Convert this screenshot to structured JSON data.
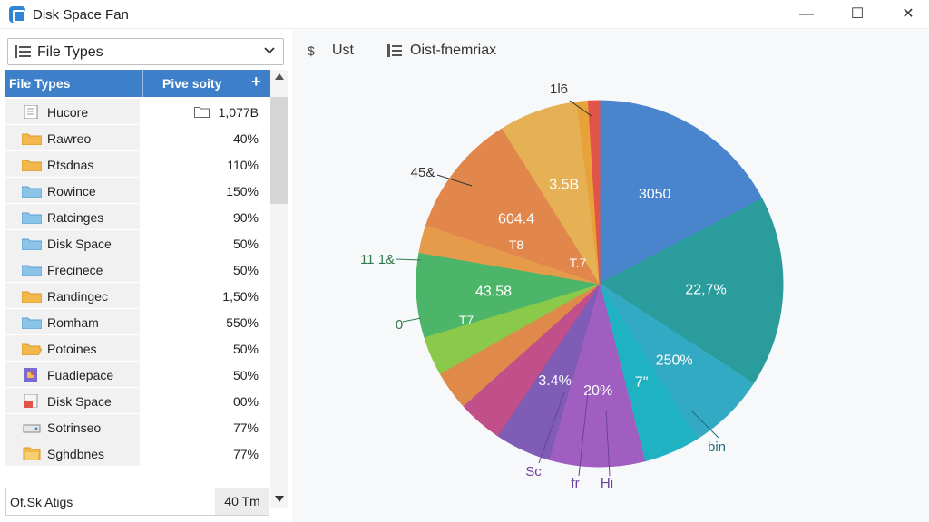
{
  "window": {
    "title": "Disk Space Fan",
    "minimize_glyph": "—",
    "maximize_glyph": "☐",
    "close_glyph": "✕"
  },
  "sidebar": {
    "dropdown_value": "File Types",
    "table": {
      "col_name": "File Types",
      "col_value": "Pive soity",
      "add_glyph": "+",
      "rows": [
        {
          "name": "Hucore",
          "value": "1,077B",
          "icon": "document-icon",
          "folder_icon": "folder-outline-icon"
        },
        {
          "name": "Rawreo",
          "value": "40%",
          "icon": "folder-yellow-icon"
        },
        {
          "name": "Rtsdnas",
          "value": "110%",
          "icon": "folder-yellow-icon"
        },
        {
          "name": "Rowince",
          "value": "150%",
          "icon": "folder-blue-icon"
        },
        {
          "name": "Ratcinges",
          "value": "90%",
          "icon": "folder-blue-icon"
        },
        {
          "name": "Disk Space",
          "value": "50%",
          "icon": "folder-blue-icon"
        },
        {
          "name": "Frecinece",
          "value": "50%",
          "icon": "folder-blue-icon"
        },
        {
          "name": "Randingec",
          "value": "1,50%",
          "icon": "folder-yellow-icon"
        },
        {
          "name": "Romham",
          "value": "550%",
          "icon": "folder-blue-icon"
        },
        {
          "name": "Potoines",
          "value": "50%",
          "icon": "folder-open-icon"
        },
        {
          "name": "Fuadiepace",
          "value": "50%",
          "icon": "image-file-icon"
        },
        {
          "name": "Disk Space",
          "value": "00%",
          "icon": "pdf-file-icon"
        },
        {
          "name": "Sotrinseo",
          "value": "77%",
          "icon": "drive-icon"
        },
        {
          "name": "Sghdbnes",
          "value": "77%",
          "icon": "folder-stack-icon"
        }
      ]
    },
    "status": {
      "label": "Of.Sk Atigs",
      "value": "40 Tm"
    }
  },
  "toolbar": {
    "list_label": "Ust",
    "distribution_label": "Oist-fnemriax",
    "list_icon": "dollar-icon",
    "distribution_icon": "list-icon"
  },
  "chart_data": {
    "type": "pie",
    "slices": [
      {
        "label": "3050",
        "share": 0.175,
        "color": "#4a84cc"
      },
      {
        "label": "22,7%",
        "share": 0.17,
        "color": "#2a9c9c"
      },
      {
        "label": "250%",
        "share": 0.07,
        "color": "#33aac3"
      },
      {
        "label": "7\"",
        "share": 0.05,
        "color": "#1fb2c2"
      },
      {
        "label": "20%",
        "share": 0.085,
        "color": "#a15ec1"
      },
      {
        "label": "3.4%",
        "share": 0.05,
        "color": "#7f5cb6"
      },
      {
        "label": "",
        "share": 0.04,
        "color": "#c14f8a"
      },
      {
        "label": "",
        "share": 0.035,
        "color": "#df8a4a"
      },
      {
        "label": "",
        "share": 0.035,
        "color": "#8ac94a"
      },
      {
        "label": "43.58",
        "share": 0.075,
        "color": "#4db569"
      },
      {
        "label": "",
        "share": 0.025,
        "color": "#e69b4b"
      },
      {
        "label": "604.4",
        "share": 0.11,
        "color": "#e2874c"
      },
      {
        "label": "3.5B",
        "share": 0.07,
        "color": "#e6b054"
      },
      {
        "label": "",
        "share": 0.01,
        "color": "#e8a23a"
      },
      {
        "label": "",
        "share": 0.01,
        "color": "#e15449"
      }
    ],
    "inner_labels": [
      "T.7",
      "T7",
      "T8"
    ],
    "callouts": [
      "1l6",
      "45&",
      "11 1&",
      "0",
      "Sc",
      "fr",
      "Hi",
      "bin"
    ]
  }
}
